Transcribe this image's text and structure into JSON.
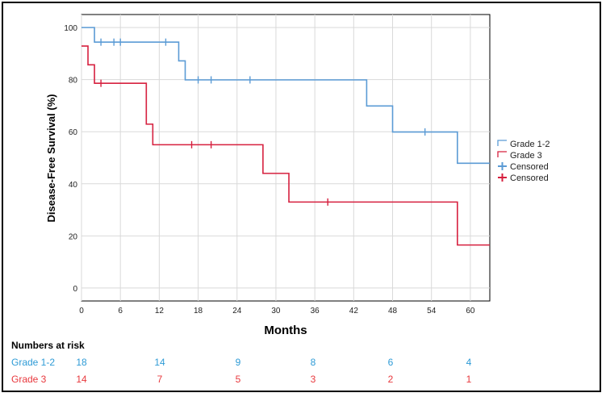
{
  "chart_data": {
    "type": "line",
    "subtype": "kaplan-meier step",
    "xlabel": "Months",
    "ylabel": "Disease-Free Survival (%)",
    "xlim": [
      0,
      63
    ],
    "ylim": [
      -5,
      105
    ],
    "xticks": [
      0,
      6,
      12,
      18,
      24,
      30,
      36,
      42,
      48,
      54,
      60
    ],
    "yticks": [
      0,
      20,
      40,
      60,
      80,
      100
    ],
    "grid": true,
    "legend_position": "right",
    "series": [
      {
        "name": "Grade 1-2",
        "color": "#5b9bd5",
        "steps": [
          [
            0,
            100
          ],
          [
            2,
            94.4
          ],
          [
            15,
            87.2
          ],
          [
            16,
            79.9
          ],
          [
            44,
            69.9
          ],
          [
            48,
            59.9
          ],
          [
            58,
            47.9
          ],
          [
            63,
            47.9
          ]
        ],
        "censored": [
          [
            3,
            94.4
          ],
          [
            5,
            94.4
          ],
          [
            6,
            94.4
          ],
          [
            13,
            94.4
          ],
          [
            18,
            79.9
          ],
          [
            20,
            79.9
          ],
          [
            26,
            79.9
          ],
          [
            53,
            59.9
          ]
        ]
      },
      {
        "name": "Grade 3",
        "color": "#d6203f",
        "steps": [
          [
            0,
            92.9
          ],
          [
            1,
            85.7
          ],
          [
            2,
            78.6
          ],
          [
            10,
            62.9
          ],
          [
            11,
            55
          ],
          [
            28,
            44
          ],
          [
            32,
            33
          ],
          [
            58,
            16.5
          ],
          [
            63,
            16.5
          ]
        ],
        "censored": [
          [
            3,
            78.6
          ],
          [
            17,
            55
          ],
          [
            20,
            55
          ],
          [
            38,
            33
          ]
        ]
      }
    ],
    "legend": [
      {
        "label": "Grade 1-2",
        "color": "#5b9bd5",
        "kind": "step"
      },
      {
        "label": "Grade 3",
        "color": "#d6203f",
        "kind": "step"
      },
      {
        "label": "Censored",
        "color": "#5b9bd5",
        "kind": "censor"
      },
      {
        "label": "Censored",
        "color": "#d6203f",
        "kind": "censor"
      }
    ]
  },
  "risk_table": {
    "title": "Numbers at risk",
    "rows": [
      {
        "label": "Grade 1-2",
        "color": "#2e9bd6",
        "values": [
          "18",
          "14",
          "9",
          "8",
          "6",
          "4"
        ]
      },
      {
        "label": "Grade 3",
        "color": "#e8383d",
        "values": [
          "14",
          "7",
          "5",
          "3",
          "2",
          "1"
        ]
      }
    ]
  }
}
